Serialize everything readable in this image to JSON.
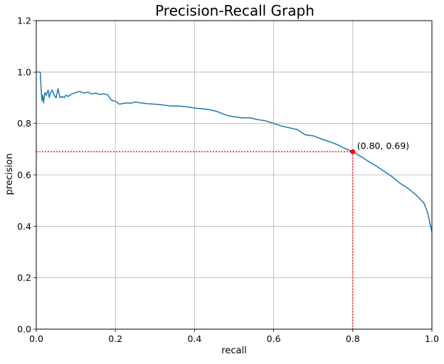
{
  "chart_data": {
    "type": "line",
    "title": "Precision-Recall Graph",
    "xlabel": "recall",
    "ylabel": "precision",
    "xlim": [
      0.0,
      1.0
    ],
    "ylim": [
      0.0,
      1.2
    ],
    "xticks": [
      "0.0",
      "0.2",
      "0.4",
      "0.6",
      "0.8",
      "1.0"
    ],
    "yticks": [
      "0.0",
      "0.2",
      "0.4",
      "0.6",
      "0.8",
      "1.0",
      "1.2"
    ],
    "grid": true,
    "series": [
      {
        "color": "#1f77b4",
        "x": [
          0.0,
          0.01,
          0.012,
          0.014,
          0.016,
          0.018,
          0.02,
          0.022,
          0.025,
          0.03,
          0.033,
          0.036,
          0.04,
          0.045,
          0.05,
          0.055,
          0.06,
          0.065,
          0.07,
          0.075,
          0.08,
          0.09,
          0.1,
          0.11,
          0.12,
          0.13,
          0.14,
          0.15,
          0.16,
          0.17,
          0.18,
          0.19,
          0.2,
          0.21,
          0.22,
          0.23,
          0.24,
          0.25,
          0.26,
          0.28,
          0.3,
          0.32,
          0.34,
          0.36,
          0.38,
          0.4,
          0.42,
          0.44,
          0.46,
          0.48,
          0.5,
          0.52,
          0.54,
          0.56,
          0.58,
          0.6,
          0.62,
          0.64,
          0.66,
          0.68,
          0.7,
          0.72,
          0.74,
          0.76,
          0.78,
          0.8,
          0.82,
          0.84,
          0.86,
          0.88,
          0.9,
          0.92,
          0.94,
          0.96,
          0.98,
          0.99,
          0.995,
          1.0
        ],
        "y": [
          1.0,
          1.0,
          0.94,
          0.89,
          0.91,
          0.88,
          0.9,
          0.92,
          0.91,
          0.93,
          0.9,
          0.92,
          0.93,
          0.91,
          0.9,
          0.935,
          0.9,
          0.905,
          0.9,
          0.91,
          0.905,
          0.915,
          0.92,
          0.925,
          0.918,
          0.922,
          0.915,
          0.918,
          0.913,
          0.915,
          0.912,
          0.89,
          0.887,
          0.875,
          0.878,
          0.88,
          0.879,
          0.884,
          0.881,
          0.877,
          0.875,
          0.872,
          0.868,
          0.868,
          0.865,
          0.86,
          0.857,
          0.853,
          0.845,
          0.832,
          0.826,
          0.822,
          0.822,
          0.815,
          0.81,
          0.8,
          0.79,
          0.783,
          0.776,
          0.756,
          0.752,
          0.74,
          0.73,
          0.718,
          0.703,
          0.69,
          0.672,
          0.652,
          0.634,
          0.613,
          0.592,
          0.567,
          0.547,
          0.522,
          0.49,
          0.45,
          0.41,
          0.38
        ]
      }
    ],
    "annotation": {
      "text": "(0.80, 0.69)",
      "x": 0.8,
      "y": 0.69,
      "marker_color": "#ff0000",
      "guide_line_style": "dotted red"
    }
  }
}
